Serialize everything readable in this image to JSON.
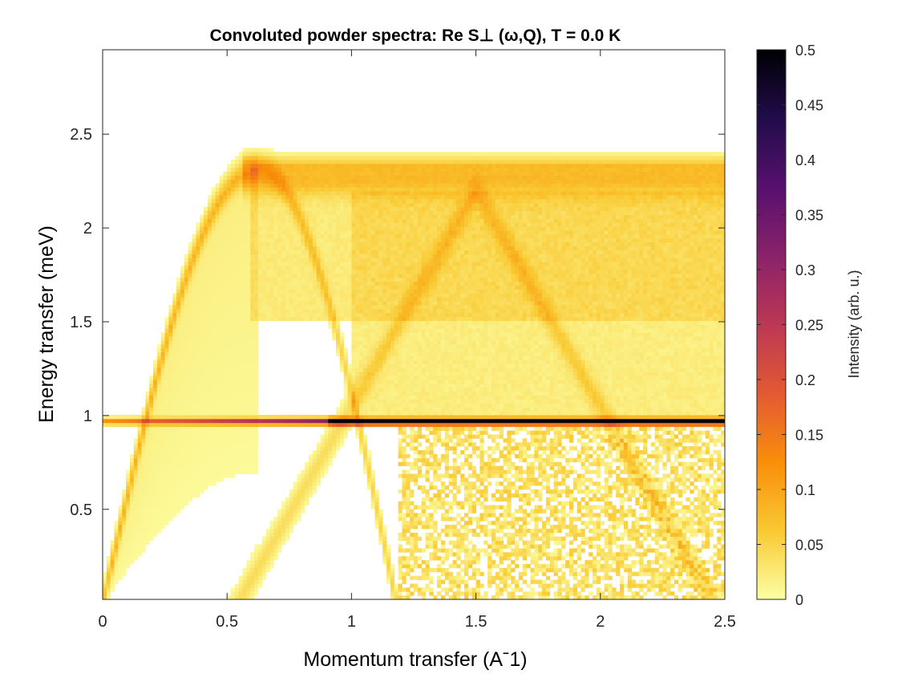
{
  "chart_data": {
    "type": "heatmap",
    "title": "Convoluted powder spectra: Re S⊥ (ω,Q), T =   0.0 K",
    "xlabel": "Momentum transfer (Aˉ1)",
    "ylabel": "Energy transfer (meV)",
    "colorbar_label": "Intensity (arb. u.)",
    "xlim": [
      0,
      2.5
    ],
    "ylim": [
      0.02,
      2.95
    ],
    "clim": [
      0,
      0.5
    ],
    "x_ticks": [
      0,
      0.5,
      1,
      1.5,
      2,
      2.5
    ],
    "x_tick_labels": [
      "0",
      "0.5",
      "1",
      "1.5",
      "2",
      "2.5"
    ],
    "y_ticks": [
      0.5,
      1,
      1.5,
      2,
      2.5
    ],
    "y_tick_labels": [
      "0.5",
      "1",
      "1.5",
      "2",
      "2.5"
    ],
    "colorbar_ticks": [
      0,
      0.05,
      0.1,
      0.15,
      0.2,
      0.25,
      0.3,
      0.35,
      0.4,
      0.45,
      0.5
    ],
    "colorbar_tick_labels": [
      "0",
      "0.05",
      "0.1",
      "0.15",
      "0.2",
      "0.25",
      "0.3",
      "0.35",
      "0.4",
      "0.45",
      "0.5"
    ],
    "colormap": [
      "#fcffa4",
      "#f9c932",
      "#f98e09",
      "#e35933",
      "#bc3754",
      "#8a226a",
      "#57106e",
      "#210c4a",
      "#000004"
    ],
    "grid": false,
    "features": {
      "flat_mode": {
        "energy": 0.97,
        "q_range": [
          0.02,
          2.5
        ],
        "peak_intensity": 0.5,
        "peak_q_range": [
          0.9,
          2.5
        ]
      },
      "dispersion_top": {
        "energy": 2.35,
        "q_start": 0.62,
        "q_end": 2.5
      },
      "acoustic_branch": {
        "q_start": 0.03,
        "q_peak": 0.62,
        "peak_energy": 2.32
      },
      "lower_branch_min_q": 1.18
    }
  }
}
